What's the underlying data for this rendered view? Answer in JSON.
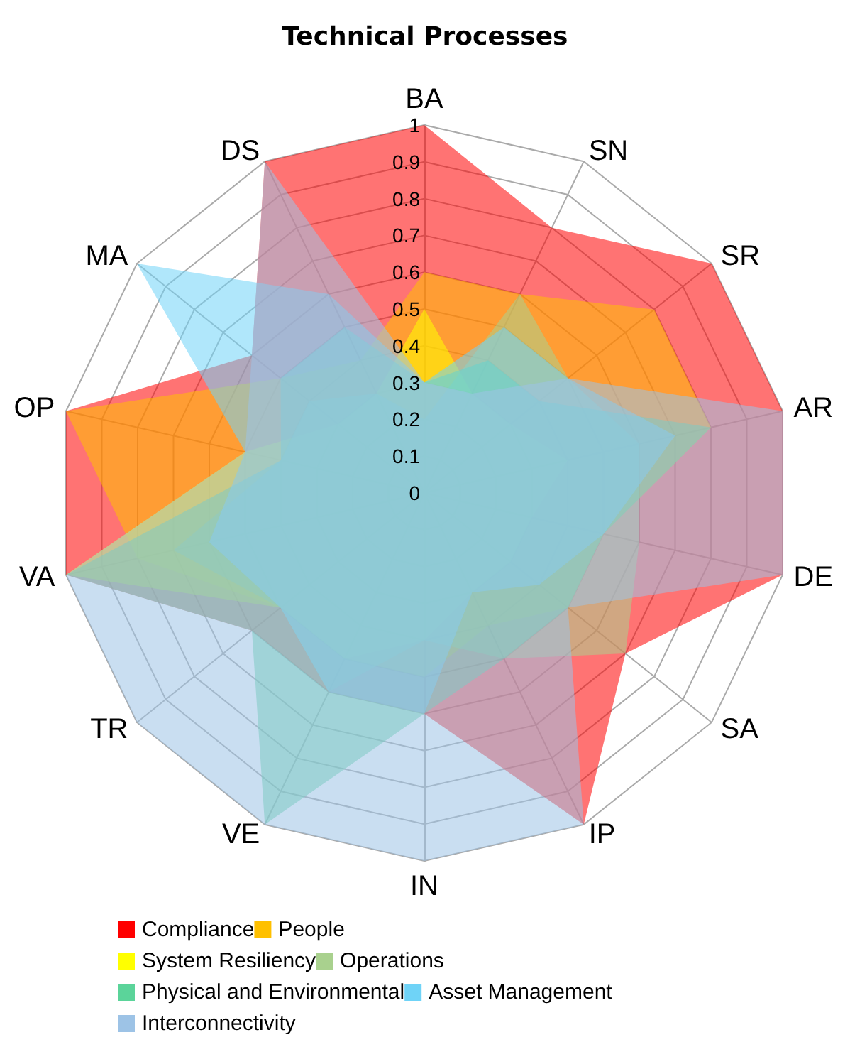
{
  "chart_data": {
    "type": "radar",
    "title": "Technical Processes",
    "categories": [
      "BA",
      "SN",
      "SR",
      "AR",
      "DE",
      "SA",
      "IP",
      "IN",
      "VE",
      "TR",
      "VA",
      "OP",
      "MA",
      "DS"
    ],
    "ylim": [
      0,
      1
    ],
    "yticks": [
      0,
      0.1,
      0.2,
      0.3,
      0.4,
      0.5,
      0.6,
      0.7,
      0.8,
      0.9,
      1
    ],
    "grid": true,
    "legend": "bottom",
    "marker": "none",
    "series": [
      {
        "name": "Compliance",
        "color": "#ff0000",
        "values": [
          1,
          0.8,
          1,
          1,
          1,
          0.7,
          1,
          0.6,
          0.6,
          0.6,
          1,
          1,
          0.6,
          1
        ]
      },
      {
        "name": "People",
        "color": "#ffc000",
        "values": [
          0.6,
          0.6,
          0.8,
          0.8,
          0.5,
          0.5,
          0.4,
          0.5,
          0.5,
          0.5,
          0.8,
          1,
          0.5,
          0.4
        ]
      },
      {
        "name": "System Resiliency",
        "color": "#ffff00",
        "values": [
          0.5,
          0.3,
          0.3,
          0.4,
          0.3,
          0.3,
          0.3,
          0.4,
          0.5,
          0.5,
          1,
          0.5,
          0.3,
          0.3
        ]
      },
      {
        "name": "Operations",
        "color": "#a9d18e",
        "values": [
          0.2,
          0.6,
          0.5,
          0.6,
          0.6,
          0.7,
          0.5,
          0.4,
          0.6,
          0.5,
          0.7,
          0.4,
          0.4,
          0.3
        ]
      },
      {
        "name": "Physical and Environmental",
        "color": "#5bd49a",
        "values": [
          0.3,
          0.4,
          0.4,
          0.8,
          0.5,
          0.5,
          0.5,
          0.6,
          1,
          0.6,
          1,
          0.4,
          0.5,
          0.5
        ]
      },
      {
        "name": "Asset Management",
        "color": "#6fd3f7",
        "values": [
          0.3,
          0.5,
          0.5,
          0.7,
          0.5,
          0.4,
          0.3,
          0.6,
          0.6,
          0.5,
          0.6,
          0.5,
          1,
          0.6
        ]
      },
      {
        "name": "Interconnectivity",
        "color": "#9dc3e6",
        "values": [
          0.3,
          0.3,
          0.5,
          1,
          1,
          0.5,
          1,
          1,
          1,
          1,
          1,
          0.5,
          0.6,
          1
        ]
      }
    ]
  }
}
